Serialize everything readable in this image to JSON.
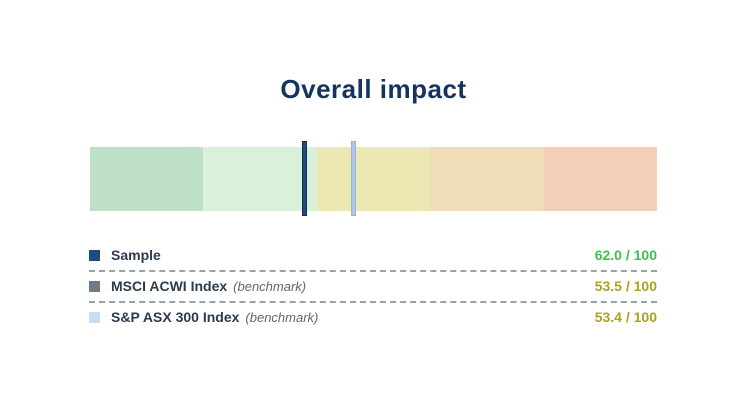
{
  "title": "Overall impact",
  "chart_data": {
    "type": "bar",
    "subtype": "horizontal-score-gauge",
    "title": "Overall impact",
    "scale": {
      "min": 0,
      "max": 100,
      "note": "left edge = 100 (best), right edge = 0 (worst)"
    },
    "bands": [
      {
        "range": "100-80",
        "color": "#bde0c6"
      },
      {
        "range": "80-60",
        "color": "#d9f0da"
      },
      {
        "range": "60-40",
        "color": "#ebe8b1"
      },
      {
        "range": "40-20",
        "color": "#f0dcb6"
      },
      {
        "range": "20-0",
        "color": "#f3ceb8"
      }
    ],
    "series": [
      {
        "name": "Sample",
        "value": 62.0,
        "display": "62.0 / 100",
        "marker_color": "#1d4d7b",
        "swatch_color": "#1d4d7b",
        "value_color": "#3fbf4d"
      },
      {
        "name": "MSCI ACWI Index",
        "benchmark_label": "(benchmark)",
        "value": 53.5,
        "display": "53.5 / 100",
        "marker_color": "#6f7c88",
        "swatch_color": "#6f7c88",
        "value_color": "#ada11f"
      },
      {
        "name": "S&P ASX 300 Index",
        "benchmark_label": "(benchmark)",
        "value": 53.4,
        "display": "53.4 / 100",
        "marker_color": "#abc8ec",
        "swatch_color": "#c8ddf4",
        "value_color": "#ada11f"
      }
    ],
    "legend_position": "below",
    "grid": false
  }
}
